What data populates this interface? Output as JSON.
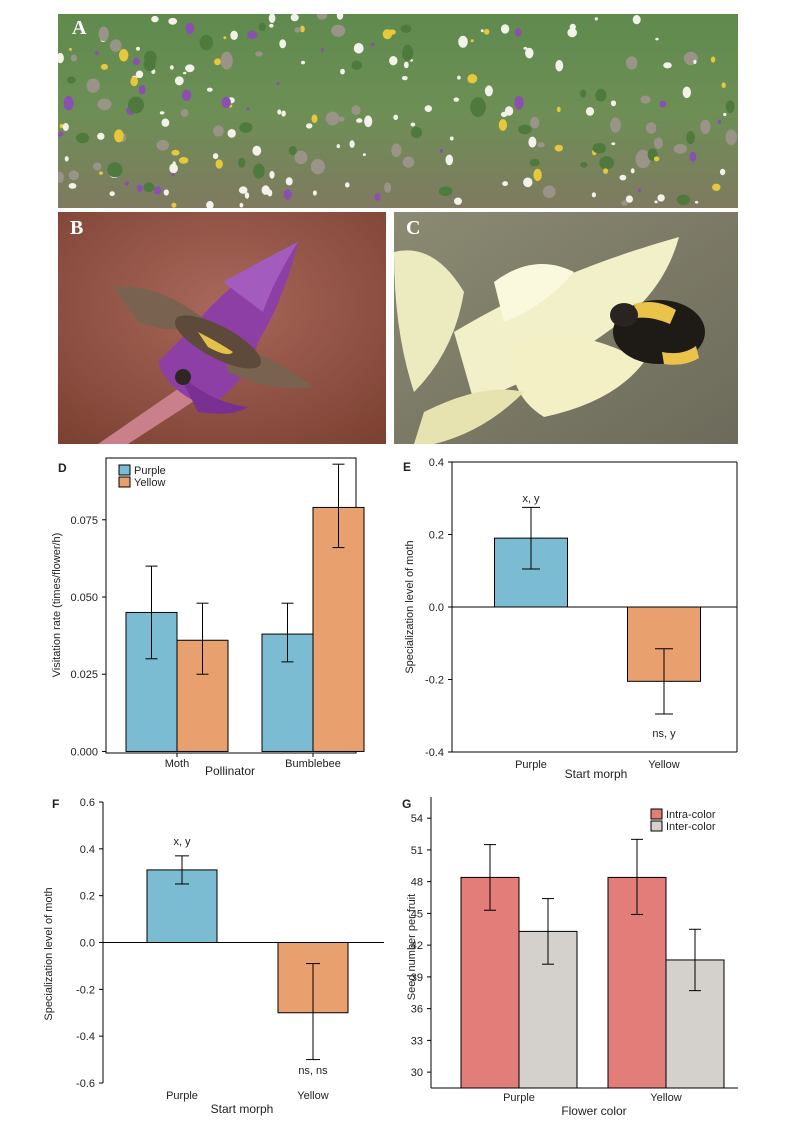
{
  "photos": {
    "a": {
      "letter": "A"
    },
    "b": {
      "letter": "B"
    },
    "c": {
      "letter": "C"
    }
  },
  "colors": {
    "purple_bar": "#7bbcd2",
    "yellow_bar": "#e8a06e",
    "intra_bar": "#e27d7a",
    "inter_bar": "#d4d1cc",
    "axis": "#000000"
  },
  "chart_data": [
    {
      "id": "D",
      "type": "bar",
      "panel_letter": "D",
      "categories": [
        "Moth",
        "Bumblebee"
      ],
      "series": [
        {
          "name": "Purple",
          "values": [
            0.045,
            0.038
          ],
          "err_low": [
            0.03,
            0.029
          ],
          "err_high": [
            0.06,
            0.048
          ]
        },
        {
          "name": "Yellow",
          "values": [
            0.036,
            0.079
          ],
          "err_low": [
            0.025,
            0.066
          ],
          "err_high": [
            0.048,
            0.093
          ]
        }
      ],
      "yticks": [
        "0.000",
        "0.025",
        "0.050",
        "0.075"
      ],
      "ylim": [
        -0.0005,
        0.095
      ],
      "xlabel": "Pollinator",
      "ylabel": "Visitation rate (times/flower/h)",
      "legend": "top-left",
      "grid": false
    },
    {
      "id": "E",
      "type": "bar",
      "panel_letter": "E",
      "categories": [
        "Purple",
        "Yellow"
      ],
      "values": [
        0.19,
        -0.205
      ],
      "err_low": [
        0.105,
        -0.295
      ],
      "err_high": [
        0.275,
        -0.115
      ],
      "labels": [
        "x, y",
        "ns, y"
      ],
      "yticks": [
        "-0.4",
        "-0.2",
        "0.0",
        "0.2",
        "0.4"
      ],
      "ylim": [
        -0.4,
        0.4
      ],
      "xlabel": "Start morph",
      "ylabel": "Specialization level of moth",
      "grid": false
    },
    {
      "id": "F",
      "type": "bar",
      "panel_letter": "F",
      "categories": [
        "Purple",
        "Yellow"
      ],
      "values": [
        0.31,
        -0.3
      ],
      "err_low": [
        0.25,
        -0.5
      ],
      "err_high": [
        0.37,
        -0.09
      ],
      "labels": [
        "x, y",
        "ns, ns"
      ],
      "yticks": [
        "-0.6",
        "-0.4",
        "-0.2",
        "0.0",
        "0.2",
        "0.4",
        "0.6"
      ],
      "ylim": [
        -0.6,
        0.6
      ],
      "xlabel": "Start morph",
      "ylabel": "Specialization level of moth",
      "grid": false
    },
    {
      "id": "G",
      "type": "bar",
      "panel_letter": "G",
      "categories": [
        "Purple",
        "Yellow"
      ],
      "series": [
        {
          "name": "Intra-color",
          "values": [
            48.4,
            48.4
          ],
          "err_low": [
            45.3,
            44.9
          ],
          "err_high": [
            51.5,
            52.0
          ]
        },
        {
          "name": "Inter-color",
          "values": [
            43.3,
            40.6
          ],
          "err_low": [
            40.2,
            37.7
          ],
          "err_high": [
            46.4,
            43.5
          ]
        }
      ],
      "yticks": [
        "30",
        "33",
        "36",
        "39",
        "42",
        "45",
        "48",
        "51",
        "54"
      ],
      "ylim": [
        28.5,
        56
      ],
      "xlabel": "Flower color",
      "ylabel": "Seed number per fruit",
      "legend": "top-right",
      "grid": false
    }
  ]
}
